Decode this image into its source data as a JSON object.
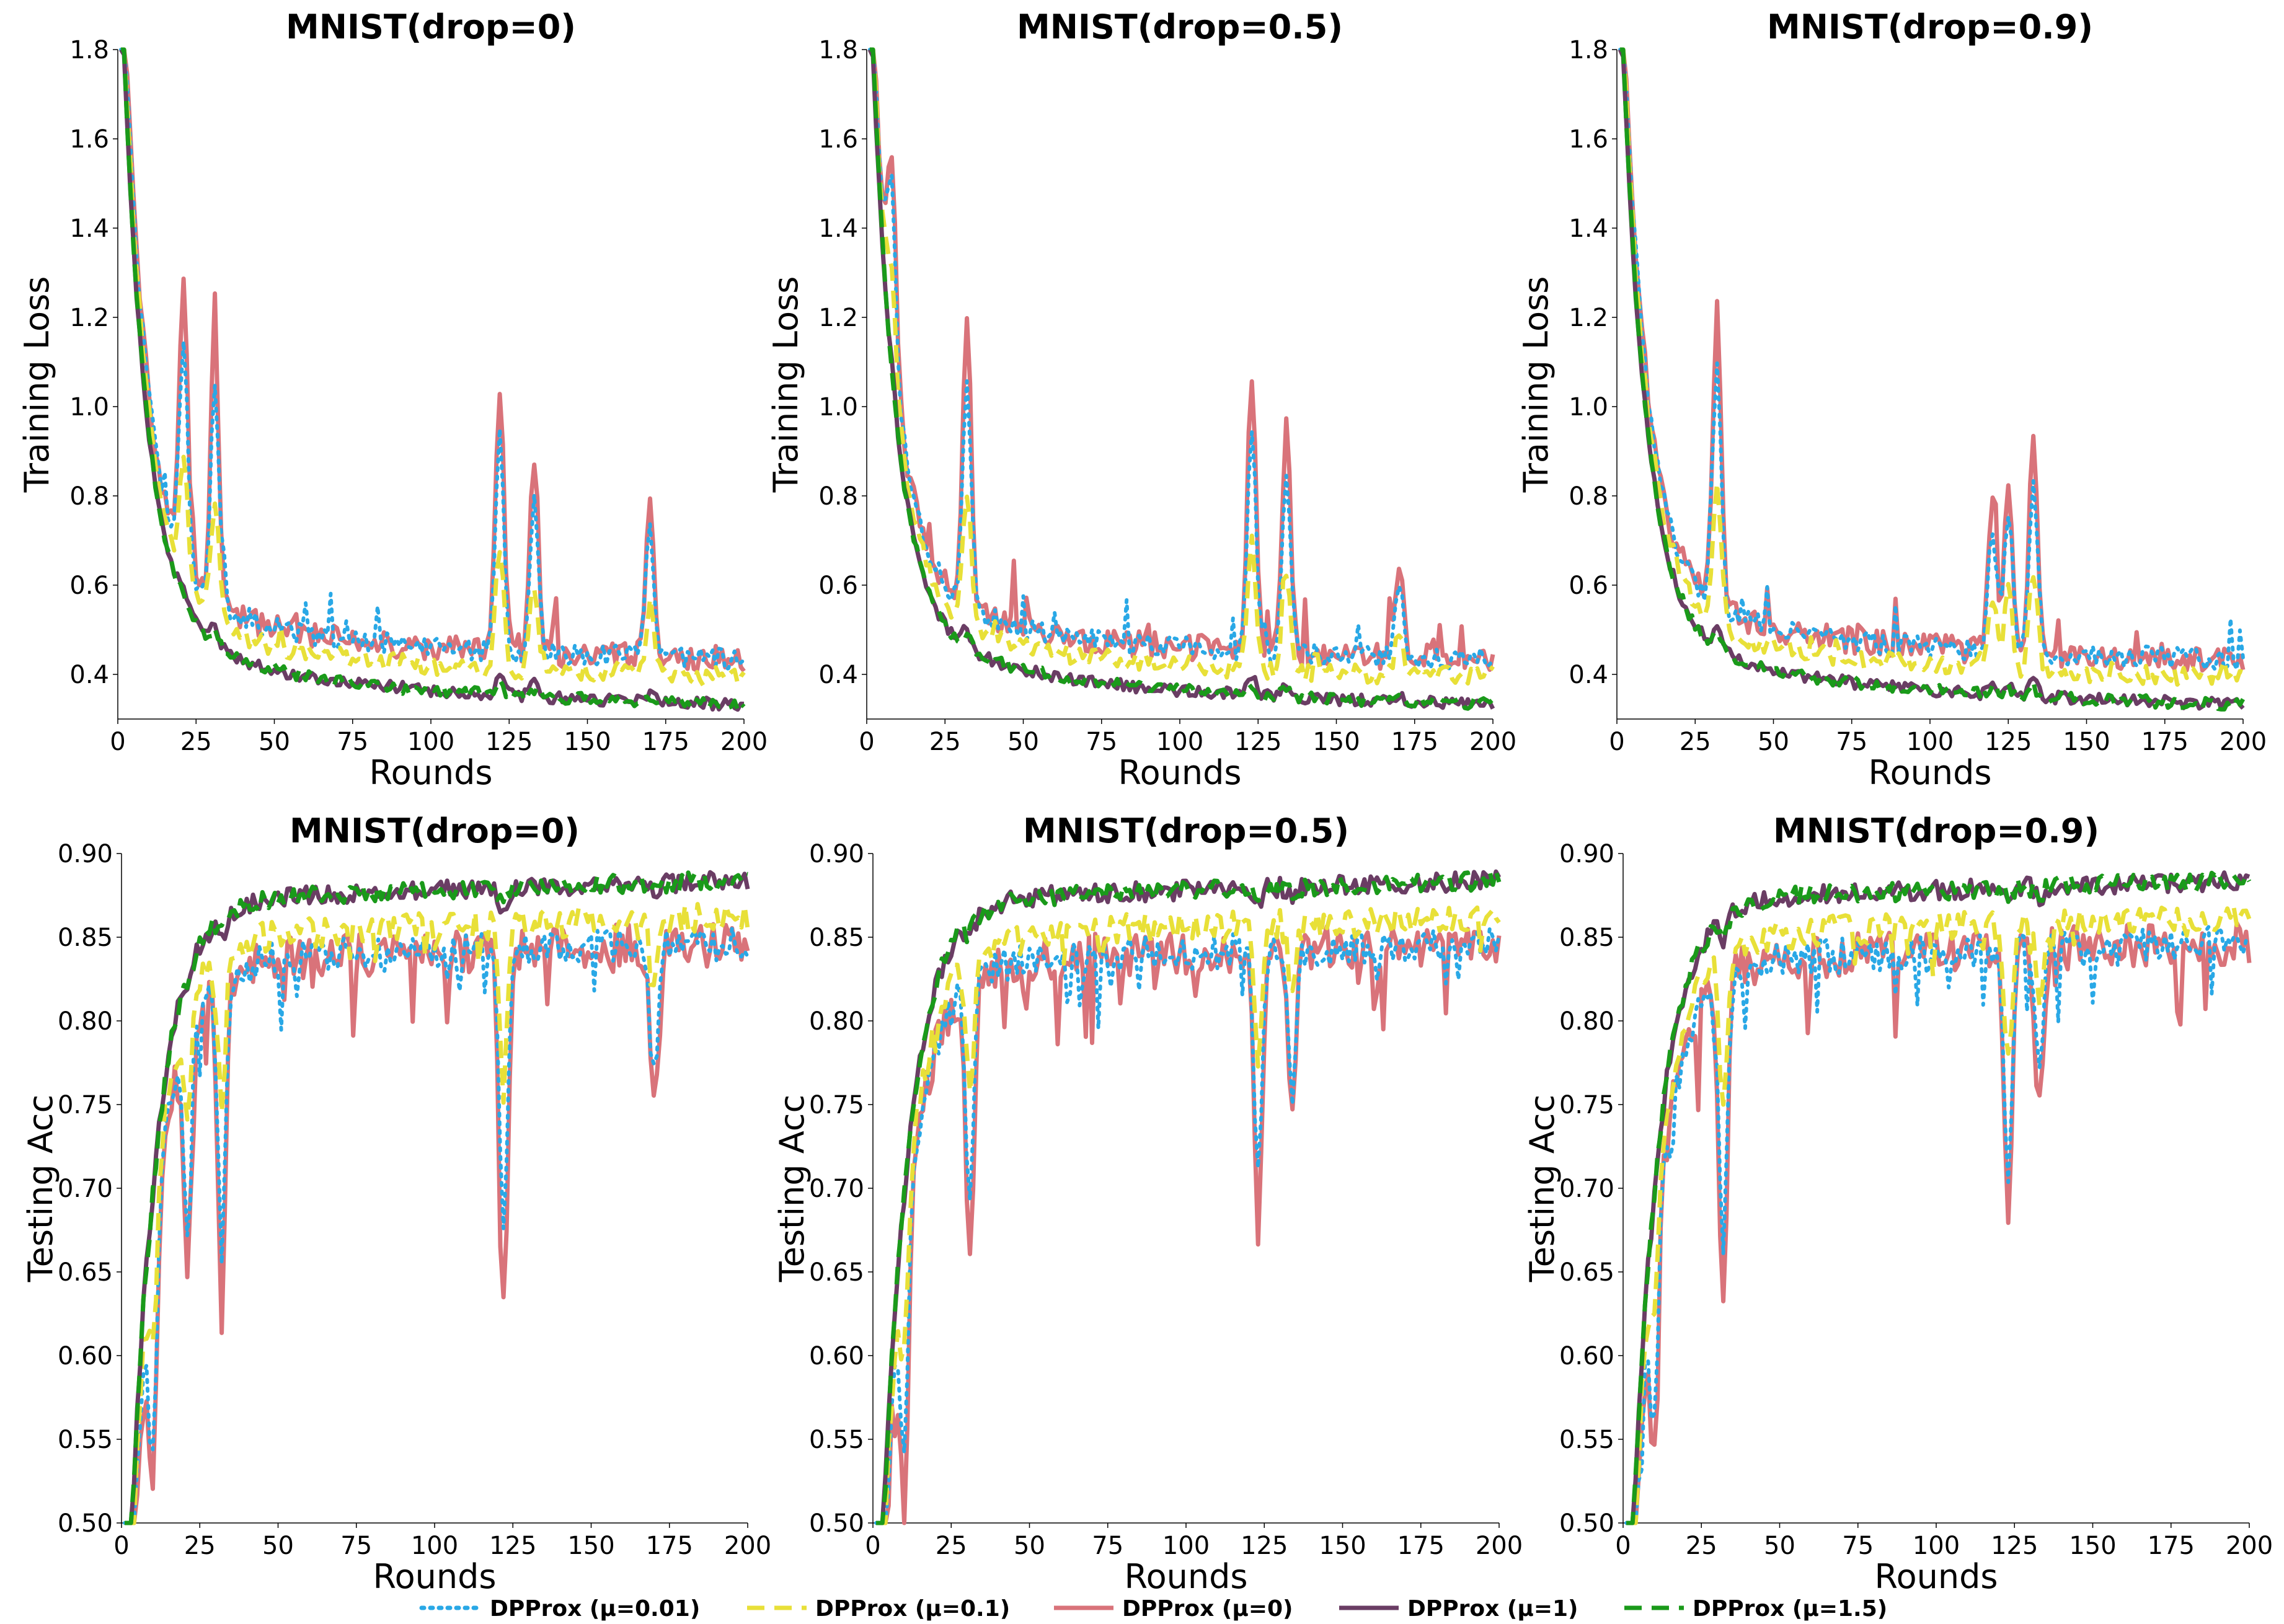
{
  "figure": {
    "background": "#ffffff"
  },
  "legend": [
    {
      "label": "DPProx (μ=0.01)",
      "color": "#29a8e6",
      "style": "dotted"
    },
    {
      "label": "DPProx (μ=0.1)",
      "color": "#e8e038",
      "style": "dashed"
    },
    {
      "label": "DPProx (μ=0)",
      "color": "#d9737a",
      "style": "solid"
    },
    {
      "label": "DPProx (μ=1)",
      "color": "#6a3d64",
      "style": "solid"
    },
    {
      "label": "DPProx (μ=1.5)",
      "color": "#1a9a1a",
      "style": "dashed"
    }
  ],
  "chart_data": [
    {
      "type": "line",
      "title": "MNIST(drop=0)",
      "xlabel": "Rounds",
      "ylabel": "Training Loss",
      "xlim": [
        0,
        200
      ],
      "ylim": [
        0.3,
        1.8
      ],
      "xticks": [
        0,
        25,
        50,
        75,
        100,
        125,
        150,
        175,
        200
      ],
      "yticks": [
        0.4,
        0.6,
        0.8,
        1.0,
        1.2,
        1.4,
        1.6,
        1.8
      ],
      "metric": "loss",
      "seed": 11,
      "spikes": [
        [
          21,
          0.62
        ],
        [
          31,
          0.6
        ],
        [
          122,
          0.6
        ],
        [
          133,
          0.45
        ],
        [
          170,
          0.35
        ]
      ]
    },
    {
      "type": "line",
      "title": "MNIST(drop=0.5)",
      "xlabel": "Rounds",
      "ylabel": "Training Loss",
      "xlim": [
        0,
        200
      ],
      "ylim": [
        0.3,
        1.8
      ],
      "xticks": [
        0,
        25,
        50,
        75,
        100,
        125,
        150,
        175,
        200
      ],
      "yticks": [
        0.4,
        0.6,
        0.8,
        1.0,
        1.2,
        1.4,
        1.6,
        1.8
      ],
      "metric": "loss",
      "seed": 23,
      "spikes": [
        [
          8,
          0.42
        ],
        [
          32,
          0.65
        ],
        [
          123,
          0.62
        ],
        [
          134,
          0.52
        ],
        [
          170,
          0.2
        ]
      ]
    },
    {
      "type": "line",
      "title": "MNIST(drop=0.9)",
      "xlabel": "Rounds",
      "ylabel": "Training Loss",
      "xlim": [
        0,
        200
      ],
      "ylim": [
        0.3,
        1.8
      ],
      "xticks": [
        0,
        25,
        50,
        75,
        100,
        125,
        150,
        175,
        200
      ],
      "yticks": [
        0.4,
        0.6,
        0.8,
        1.0,
        1.2,
        1.4,
        1.6,
        1.8
      ],
      "metric": "loss",
      "seed": 37,
      "spikes": [
        [
          32,
          0.68
        ],
        [
          120,
          0.35
        ],
        [
          125,
          0.4
        ],
        [
          133,
          0.5
        ]
      ]
    },
    {
      "type": "line",
      "title": "MNIST(drop=0)",
      "xlabel": "Rounds",
      "ylabel": "Testing Acc",
      "xlim": [
        0,
        200
      ],
      "ylim": [
        0.5,
        0.9
      ],
      "xticks": [
        0,
        25,
        50,
        75,
        100,
        125,
        150,
        175,
        200
      ],
      "yticks": [
        0.5,
        0.55,
        0.6,
        0.65,
        0.7,
        0.75,
        0.8,
        0.85,
        0.9
      ],
      "metric": "acc",
      "seed": 41,
      "spikes": [
        [
          10,
          0.15
        ],
        [
          21,
          0.14
        ],
        [
          32,
          0.2
        ],
        [
          122,
          0.22
        ],
        [
          170,
          0.1
        ]
      ]
    },
    {
      "type": "line",
      "title": "MNIST(drop=0.5)",
      "xlabel": "Rounds",
      "ylabel": "Testing Acc",
      "xlim": [
        0,
        200
      ],
      "ylim": [
        0.5,
        0.9
      ],
      "xticks": [
        0,
        25,
        50,
        75,
        100,
        125,
        150,
        175,
        200
      ],
      "yticks": [
        0.5,
        0.55,
        0.6,
        0.65,
        0.7,
        0.75,
        0.8,
        0.85,
        0.9
      ],
      "metric": "acc",
      "seed": 53,
      "spikes": [
        [
          10,
          0.16
        ],
        [
          31,
          0.17
        ],
        [
          123,
          0.17
        ],
        [
          134,
          0.1
        ]
      ]
    },
    {
      "type": "line",
      "title": "MNIST(drop=0.9)",
      "xlabel": "Rounds",
      "ylabel": "Testing Acc",
      "xlim": [
        0,
        200
      ],
      "ylim": [
        0.5,
        0.9
      ],
      "xticks": [
        0,
        25,
        50,
        75,
        100,
        125,
        150,
        175,
        200
      ],
      "yticks": [
        0.5,
        0.55,
        0.6,
        0.65,
        0.7,
        0.75,
        0.8,
        0.85,
        0.9
      ],
      "metric": "acc",
      "seed": 67,
      "spikes": [
        [
          10,
          0.13
        ],
        [
          32,
          0.2
        ],
        [
          123,
          0.17
        ],
        [
          133,
          0.1
        ]
      ]
    }
  ]
}
